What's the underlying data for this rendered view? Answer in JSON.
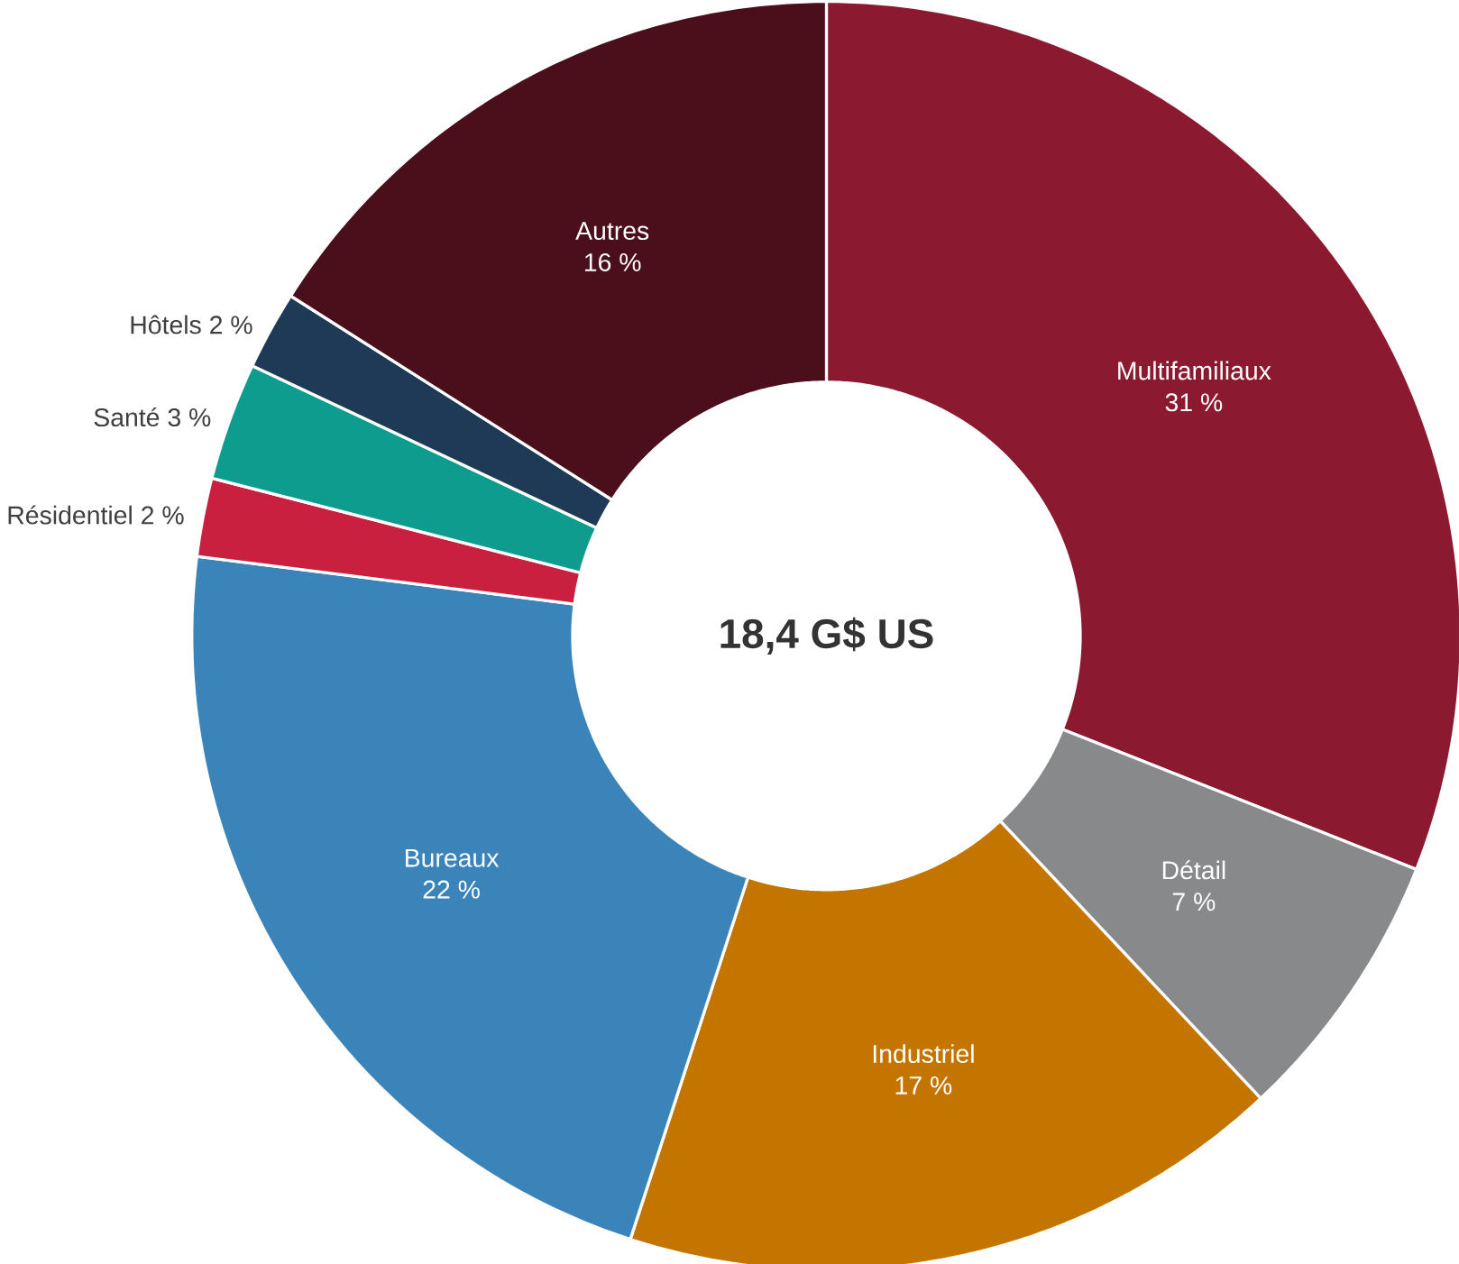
{
  "chart_data": {
    "type": "donut",
    "categories": [
      "Multifamiliaux",
      "Détail",
      "Industriel",
      "Bureaux",
      "Résidentiel",
      "Santé",
      "Hôtels",
      "Autres"
    ],
    "values": [
      31,
      7,
      17,
      22,
      2,
      3,
      2,
      16
    ],
    "value_labels": [
      "31 %",
      "7 %",
      "17 %",
      "22 %",
      "2 %",
      "3 %",
      "2 %",
      "16 %"
    ],
    "colors": [
      "#8b1a31",
      "#88898b",
      "#c47500",
      "#3a84ba",
      "#c8203e",
      "#0e9c8e",
      "#1e3a56",
      "#4a0f1b"
    ],
    "annotations": [
      "18,4 G$ US"
    ]
  }
}
